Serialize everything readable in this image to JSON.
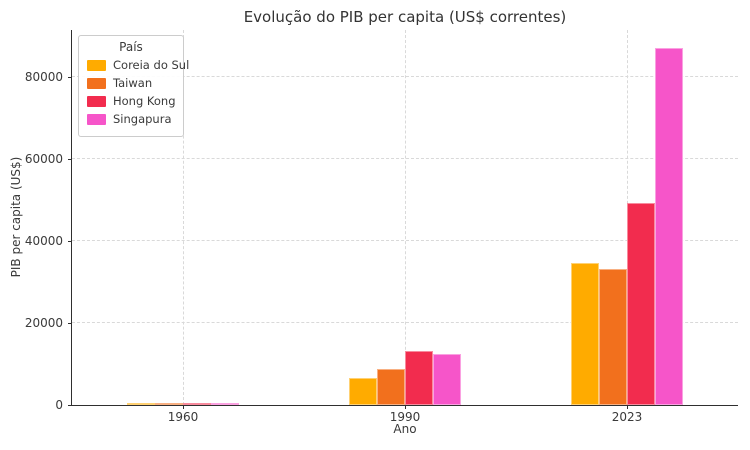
{
  "chart_data": {
    "type": "bar",
    "title": "Evolução do PIB per capita (US$ correntes)",
    "xlabel": "Ano",
    "ylabel": "PIB per capita (US$)",
    "categories": [
      "1960",
      "1990",
      "2023"
    ],
    "series": [
      {
        "name": "Coreia do Sul",
        "color": "#FFAB00",
        "values": [
          160,
          6500,
          34600
        ]
      },
      {
        "name": "Taiwan",
        "color": "#F2701D",
        "values": [
          160,
          8900,
          33200
        ]
      },
      {
        "name": "Hong Kong",
        "color": "#F22C4E",
        "values": [
          430,
          13100,
          49400
        ]
      },
      {
        "name": "Singapura",
        "color": "#F655C9",
        "values": [
          430,
          12400,
          87200
        ]
      }
    ],
    "ylim": [
      0,
      91500
    ],
    "yticks": [
      0,
      20000,
      40000,
      60000,
      80000
    ],
    "grid": true,
    "legend_title": "País",
    "legend_position": "upper left"
  }
}
